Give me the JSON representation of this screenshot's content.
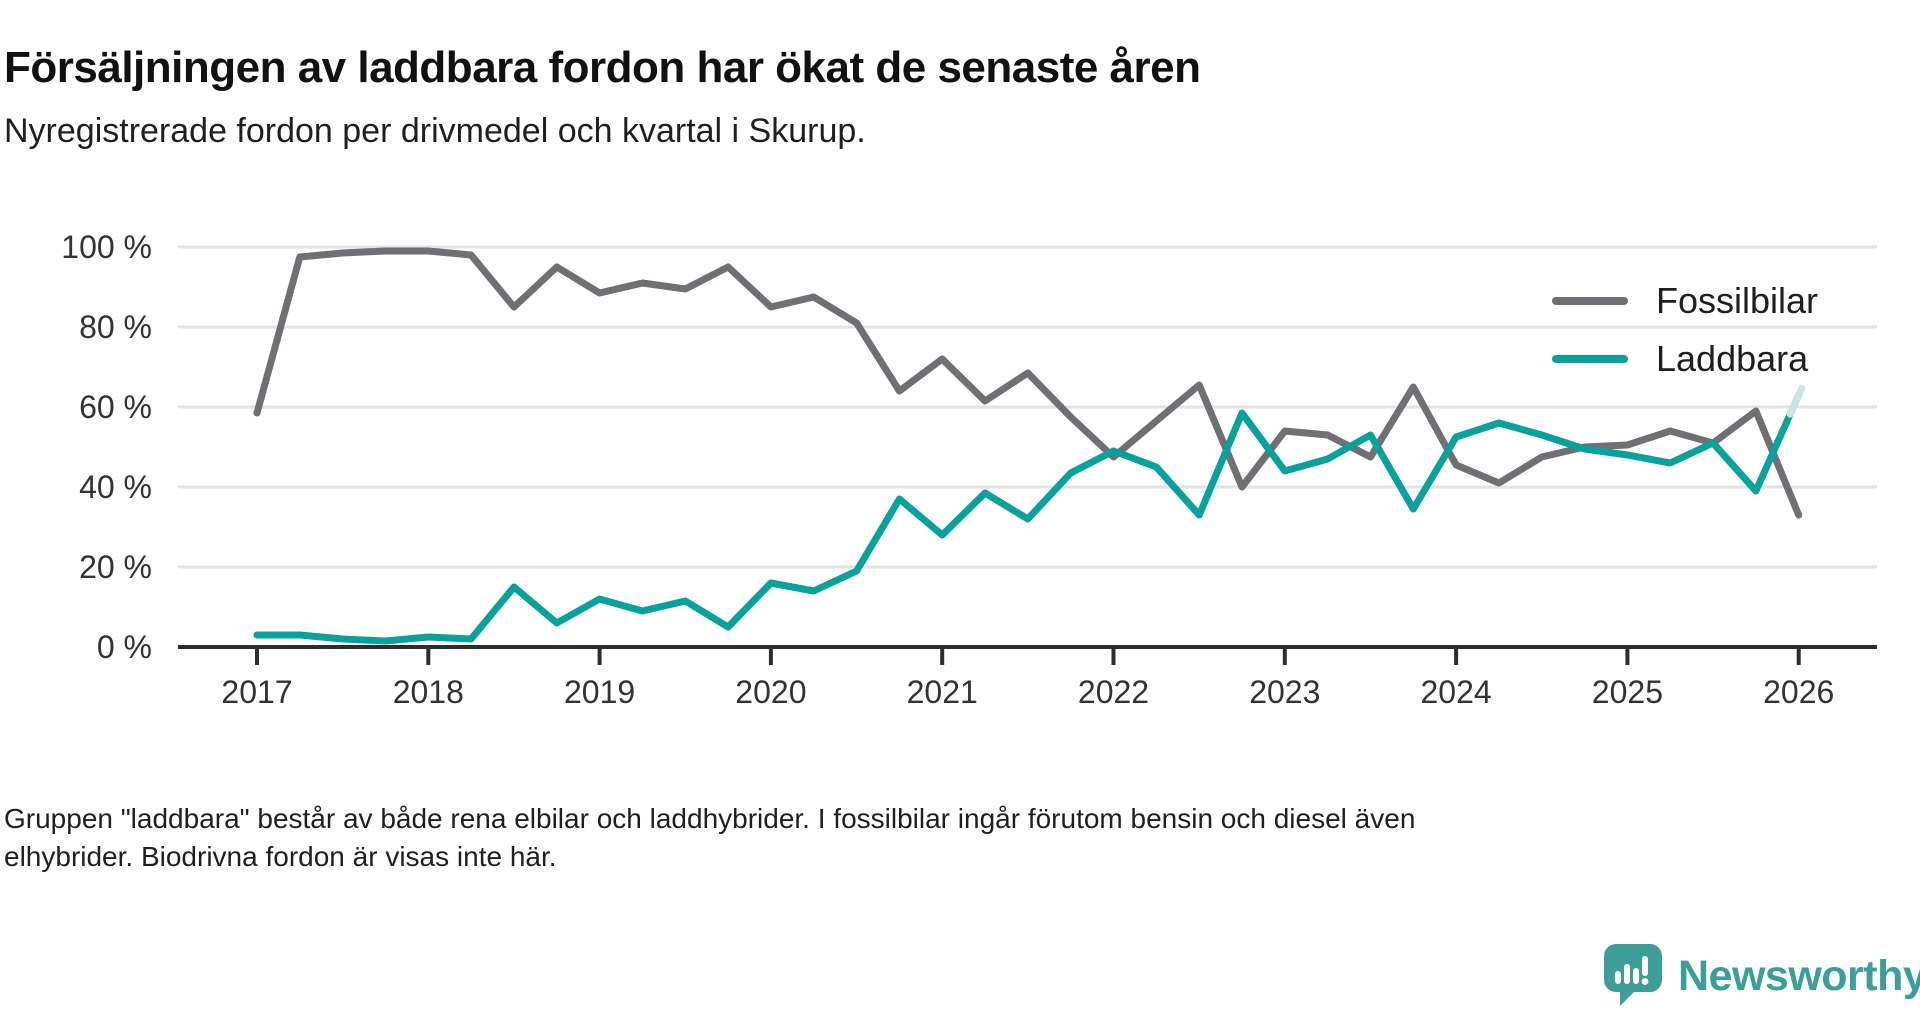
{
  "title": "Försäljningen av laddbara fordon har ökat de senaste åren",
  "subtitle": "Nyregistrerade fordon per drivmedel och kvartal i Skurup.",
  "legend": {
    "fossil_label": "Fossilbilar",
    "laddbara_label": "Laddbara"
  },
  "footer": {
    "line1": "Gruppen \"laddbara\" består av både rena elbilar och laddhybrider. I fossilbilar ingår förutom bensin och diesel även",
    "line2": "elhybrider. Biodrivna fordon är visas inte här."
  },
  "logo": {
    "brand": "Newsworthy"
  },
  "colors": {
    "fossil": "#6f6f74",
    "laddbara": "#09a29a",
    "laddbara_light": "#c9e5e2",
    "grid": "#e3e3e3",
    "axis": "#2d2d2d",
    "tick_text": "#333333",
    "logo_teal": "#3d9e98"
  },
  "chart_data": {
    "type": "line",
    "title": "Nyregistrerade fordon per drivmedel och kvartal i Skurup",
    "x_unit": "quarter",
    "x_start": "2017Q1",
    "x_end": "2026Q1",
    "x_tick_labels": [
      "2017",
      "2018",
      "2019",
      "2020",
      "2021",
      "2022",
      "2023",
      "2024",
      "2025",
      "2026"
    ],
    "y_ticks": [
      0,
      20,
      40,
      60,
      80,
      100
    ],
    "y_tick_labels": [
      "0 %",
      "20 %",
      "40 %",
      "60 %",
      "80 %",
      "100 %"
    ],
    "ylim": [
      0,
      100
    ],
    "grid": true,
    "legend_position": "top-right",
    "series": [
      {
        "name": "Fossilbilar",
        "color_key": "fossil",
        "values": [
          58.5,
          97.5,
          98.5,
          99,
          99,
          98,
          85,
          95,
          88.5,
          91,
          89.5,
          95,
          85,
          87.5,
          81,
          64,
          72,
          61.5,
          68.5,
          57.5,
          47.5,
          56.5,
          65.5,
          40,
          54,
          53,
          47.5,
          65,
          45.5,
          41,
          47.5,
          50,
          50.5,
          54,
          51,
          59,
          33
        ]
      },
      {
        "name": "Laddbara",
        "color_key": "laddbara",
        "values": [
          3,
          3,
          2,
          1.5,
          2.5,
          2,
          15,
          6,
          12,
          9,
          11.5,
          5,
          16,
          14,
          19,
          37,
          28,
          38.5,
          32,
          43.5,
          49,
          45,
          33,
          58.5,
          44,
          47,
          53,
          34.5,
          52.5,
          56,
          53,
          49.5,
          48,
          46,
          51,
          39,
          63
        ]
      }
    ],
    "last_point_highlighted": true
  }
}
